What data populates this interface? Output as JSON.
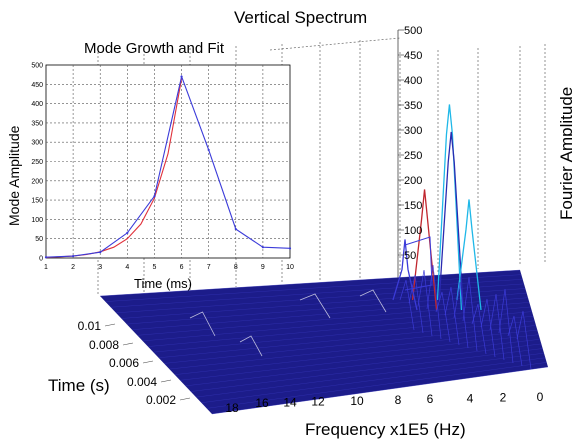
{
  "chart_data": [
    {
      "type": "line",
      "title": "Mode Growth and Fit",
      "xlabel": "Time (ms)",
      "ylabel": "Mode Amplitude",
      "xlim": [
        1,
        10
      ],
      "ylim": [
        0,
        500
      ],
      "xticks": [
        "1",
        "2",
        "3",
        "4",
        "5",
        "6",
        "7",
        "8",
        "9",
        "10"
      ],
      "yticks": [
        "0",
        "50",
        "100",
        "150",
        "200",
        "250",
        "300",
        "350",
        "400",
        "450",
        "500"
      ],
      "grid": true,
      "series": [
        {
          "color": "#3b3bd9",
          "x": [
            1,
            2,
            3,
            4,
            5,
            6,
            7,
            8,
            9,
            10
          ],
          "y": [
            2,
            5,
            15,
            65,
            160,
            470,
            280,
            75,
            28,
            25
          ]
        },
        {
          "color": "#e0303a",
          "x": [
            1,
            1.5,
            2,
            2.5,
            3,
            3.5,
            4,
            4.5,
            5,
            5.5,
            6
          ],
          "y": [
            1.5,
            3,
            5,
            9,
            16,
            28,
            50,
            88,
            155,
            270,
            465
          ]
        }
      ]
    },
    {
      "type": "line",
      "title": "Vertical Spectrum",
      "xlabel": "Frequency x1E5 (Hz)",
      "ylabel": "Time (s)",
      "zlabel": "Fourier Amplitude",
      "xticks": [
        "18",
        "16",
        "14",
        "12",
        "10",
        "8",
        "6",
        "4",
        "2",
        "0"
      ],
      "yticks": [
        "0.01",
        "0.008",
        "0.006",
        "0.004",
        "0.002"
      ],
      "zticks": [
        "50",
        "100",
        "150",
        "200",
        "250",
        "300",
        "350",
        "400",
        "450",
        "500"
      ],
      "zlim": [
        0,
        500
      ],
      "grid": true,
      "peaks": [
        {
          "frequency": 4.7,
          "amplitude": 375,
          "color": "#1fb8e8"
        },
        {
          "frequency": 4.6,
          "amplitude": 320,
          "color": "#2a2ab0"
        },
        {
          "frequency": 6.1,
          "amplitude": 205,
          "color": "#c0262e"
        },
        {
          "frequency": 3.6,
          "amplitude": 185,
          "color": "#1fb8e8"
        },
        {
          "frequency": 7.2,
          "amplitude": 105,
          "color": "#3b3bd9"
        }
      ]
    }
  ]
}
